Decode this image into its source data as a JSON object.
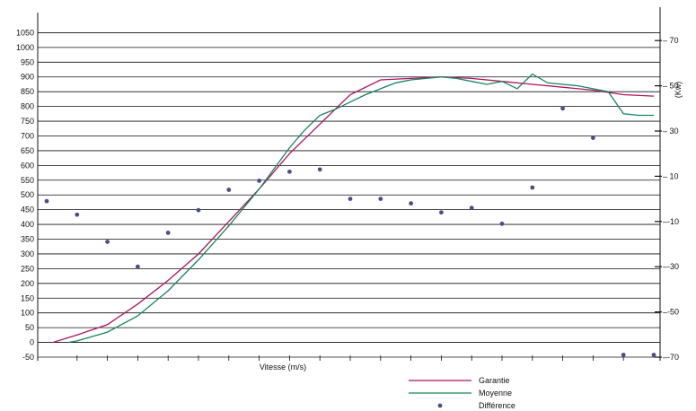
{
  "chart_data": {
    "type": "line",
    "xlabel": "Vitesse (m/s)",
    "ylabel": "",
    "y2label": "(Kw)",
    "ylim": [
      -50,
      1100
    ],
    "yticks": [
      -50,
      0,
      50,
      100,
      150,
      200,
      250,
      300,
      350,
      400,
      450,
      500,
      550,
      600,
      650,
      700,
      750,
      800,
      850,
      900,
      950,
      1000,
      1050
    ],
    "y2lim": [
      -70,
      80
    ],
    "y2ticks": [
      -70,
      -50,
      -30,
      -10,
      10,
      30,
      50,
      70
    ],
    "xlim": [
      0,
      20
    ],
    "xticks": [
      1,
      2,
      3,
      4,
      5,
      6,
      7,
      8,
      9,
      10,
      11,
      12,
      13,
      14,
      15,
      16,
      17,
      18,
      19
    ],
    "grid": "horizontal",
    "legend_position": "bottom-right",
    "series": [
      {
        "name": "Garantie",
        "color": "#b0135e",
        "axis": "left",
        "x": [
          0.2,
          1,
          2,
          3,
          4,
          5,
          6,
          7,
          8,
          9,
          10,
          11,
          12,
          13,
          14,
          15,
          16,
          17,
          18,
          19,
          20
        ],
        "y": [
          0,
          25,
          60,
          130,
          210,
          300,
          410,
          520,
          640,
          740,
          840,
          890,
          895,
          900,
          895,
          885,
          875,
          865,
          855,
          840,
          835
        ]
      },
      {
        "name": "Moyenne",
        "color": "#14875a",
        "axis": "left",
        "x": [
          0.7,
          1,
          2,
          3,
          4,
          5,
          6,
          7,
          7.5,
          8,
          8.5,
          9,
          9.5,
          10,
          10.5,
          11,
          11.5,
          12,
          12.5,
          13,
          13.5,
          14,
          14.5,
          15,
          15.5,
          16,
          16.5,
          17,
          17.5,
          18,
          18.5,
          19,
          19.5,
          20
        ],
        "y": [
          0,
          5,
          35,
          90,
          175,
          280,
          395,
          520,
          590,
          660,
          720,
          770,
          790,
          815,
          840,
          860,
          880,
          890,
          895,
          900,
          895,
          885,
          875,
          885,
          860,
          910,
          880,
          875,
          870,
          860,
          850,
          775,
          770,
          770
        ]
      },
      {
        "name": "Différence",
        "color": "#4c4c8c",
        "axis": "right",
        "type": "scatter",
        "x": [
          0,
          1,
          2,
          3,
          4,
          5,
          6,
          7,
          8,
          9,
          10,
          11,
          12,
          13,
          14,
          15,
          16,
          17,
          18,
          19,
          20
        ],
        "y": [
          -1,
          -7,
          -19,
          -30,
          -15,
          -5,
          4,
          8,
          12,
          13,
          0,
          0,
          -2,
          -6,
          -4,
          -11,
          5,
          40,
          27,
          -69,
          -69
        ]
      }
    ]
  }
}
